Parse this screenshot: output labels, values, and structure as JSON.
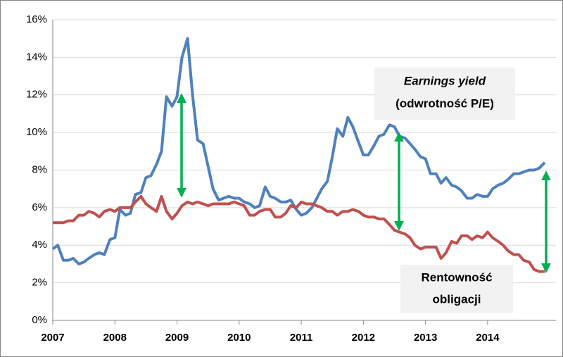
{
  "chart_data": {
    "type": "line",
    "x": [
      2007,
      2007.08,
      2007.17,
      2007.25,
      2007.33,
      2007.42,
      2007.5,
      2007.58,
      2007.67,
      2007.75,
      2007.83,
      2007.92,
      2008,
      2008.08,
      2008.17,
      2008.25,
      2008.33,
      2008.42,
      2008.5,
      2008.58,
      2008.67,
      2008.75,
      2008.83,
      2008.92,
      2009,
      2009.08,
      2009.17,
      2009.25,
      2009.33,
      2009.42,
      2009.5,
      2009.58,
      2009.67,
      2009.75,
      2009.83,
      2009.92,
      2010,
      2010.08,
      2010.17,
      2010.25,
      2010.33,
      2010.42,
      2010.5,
      2010.58,
      2010.67,
      2010.75,
      2010.83,
      2010.92,
      2011,
      2011.08,
      2011.17,
      2011.25,
      2011.33,
      2011.42,
      2011.5,
      2011.58,
      2011.67,
      2011.75,
      2011.83,
      2011.92,
      2012,
      2012.08,
      2012.17,
      2012.25,
      2012.33,
      2012.42,
      2012.5,
      2012.58,
      2012.67,
      2012.75,
      2012.83,
      2012.92,
      2013,
      2013.08,
      2013.17,
      2013.25,
      2013.33,
      2013.42,
      2013.5,
      2013.58,
      2013.67,
      2013.75,
      2013.83,
      2013.92,
      2014,
      2014.08,
      2014.17,
      2014.25,
      2014.33,
      2014.42,
      2014.5,
      2014.58,
      2014.67,
      2014.75,
      2014.83,
      2014.92
    ],
    "series": [
      {
        "color": "#4f81bd",
        "values": [
          3.8,
          4.0,
          3.2,
          3.2,
          3.3,
          3.0,
          3.1,
          3.3,
          3.5,
          3.6,
          3.5,
          4.3,
          4.4,
          5.9,
          5.6,
          5.7,
          6.7,
          6.8,
          7.6,
          7.7,
          8.3,
          9.0,
          11.9,
          11.4,
          11.9,
          14.0,
          15.0,
          12.0,
          9.6,
          9.4,
          8.2,
          7.0,
          6.4,
          6.5,
          6.6,
          6.5,
          6.5,
          6.3,
          6.2,
          6.0,
          6.1,
          7.1,
          6.6,
          6.5,
          6.3,
          6.3,
          6.4,
          5.9,
          5.6,
          5.7,
          6.0,
          6.5,
          7.0,
          7.4,
          8.7,
          10.2,
          9.8,
          10.8,
          10.3,
          9.5,
          8.8,
          8.8,
          9.3,
          9.8,
          9.9,
          10.4,
          10.3,
          9.8,
          9.7,
          9.4,
          9.1,
          8.7,
          8.6,
          7.8,
          7.8,
          7.3,
          7.6,
          7.2,
          7.1,
          6.9,
          6.5,
          6.5,
          6.7,
          6.6,
          6.6,
          7.0,
          7.2,
          7.3,
          7.5,
          7.8,
          7.8,
          7.9,
          8.0,
          8.0,
          8.1,
          8.4
        ]
      },
      {
        "color": "#c0504d",
        "values": [
          5.2,
          5.2,
          5.2,
          5.3,
          5.3,
          5.6,
          5.6,
          5.8,
          5.7,
          5.5,
          5.8,
          5.9,
          5.8,
          6.0,
          6.0,
          6.0,
          6.3,
          6.6,
          6.2,
          6.0,
          5.8,
          6.6,
          5.8,
          5.4,
          5.7,
          6.1,
          6.3,
          6.2,
          6.3,
          6.2,
          6.1,
          6.2,
          6.2,
          6.2,
          6.2,
          6.3,
          6.2,
          6.1,
          5.6,
          5.6,
          5.8,
          5.9,
          5.9,
          5.5,
          5.5,
          5.7,
          6.1,
          6.0,
          6.3,
          6.2,
          6.2,
          6.1,
          6.0,
          5.8,
          5.8,
          5.6,
          5.8,
          5.8,
          5.9,
          5.8,
          5.6,
          5.5,
          5.5,
          5.4,
          5.4,
          5.1,
          4.8,
          4.7,
          4.6,
          4.4,
          4.0,
          3.8,
          3.9,
          3.9,
          3.9,
          3.3,
          3.6,
          4.2,
          4.1,
          4.5,
          4.5,
          4.3,
          4.5,
          4.4,
          4.7,
          4.4,
          4.2,
          4.0,
          3.7,
          3.5,
          3.5,
          3.2,
          3.1,
          2.7,
          2.6,
          2.6
        ]
      }
    ],
    "annotations": [
      {
        "lines": [
          "Earnings yield",
          "(odwrotność P/E)"
        ]
      },
      {
        "lines": [
          "Rentowność",
          "obligacji"
        ]
      }
    ],
    "xlim": [
      2007,
      2015.1
    ],
    "xticks": [
      2007,
      2008,
      2009,
      2010,
      2011,
      2012,
      2013,
      2014
    ],
    "ylim": [
      0,
      16
    ],
    "yticks": [
      {
        "value": 0,
        "label": "0%"
      },
      {
        "value": 2,
        "label": "2%"
      },
      {
        "value": 4,
        "label": "4%"
      },
      {
        "value": 6,
        "label": "6%"
      },
      {
        "value": 8,
        "label": "8%"
      },
      {
        "value": 10,
        "label": "10%"
      },
      {
        "value": 12,
        "label": "12%"
      },
      {
        "value": 14,
        "label": "14%"
      },
      {
        "value": 16,
        "label": "16%"
      }
    ],
    "grid": true
  }
}
